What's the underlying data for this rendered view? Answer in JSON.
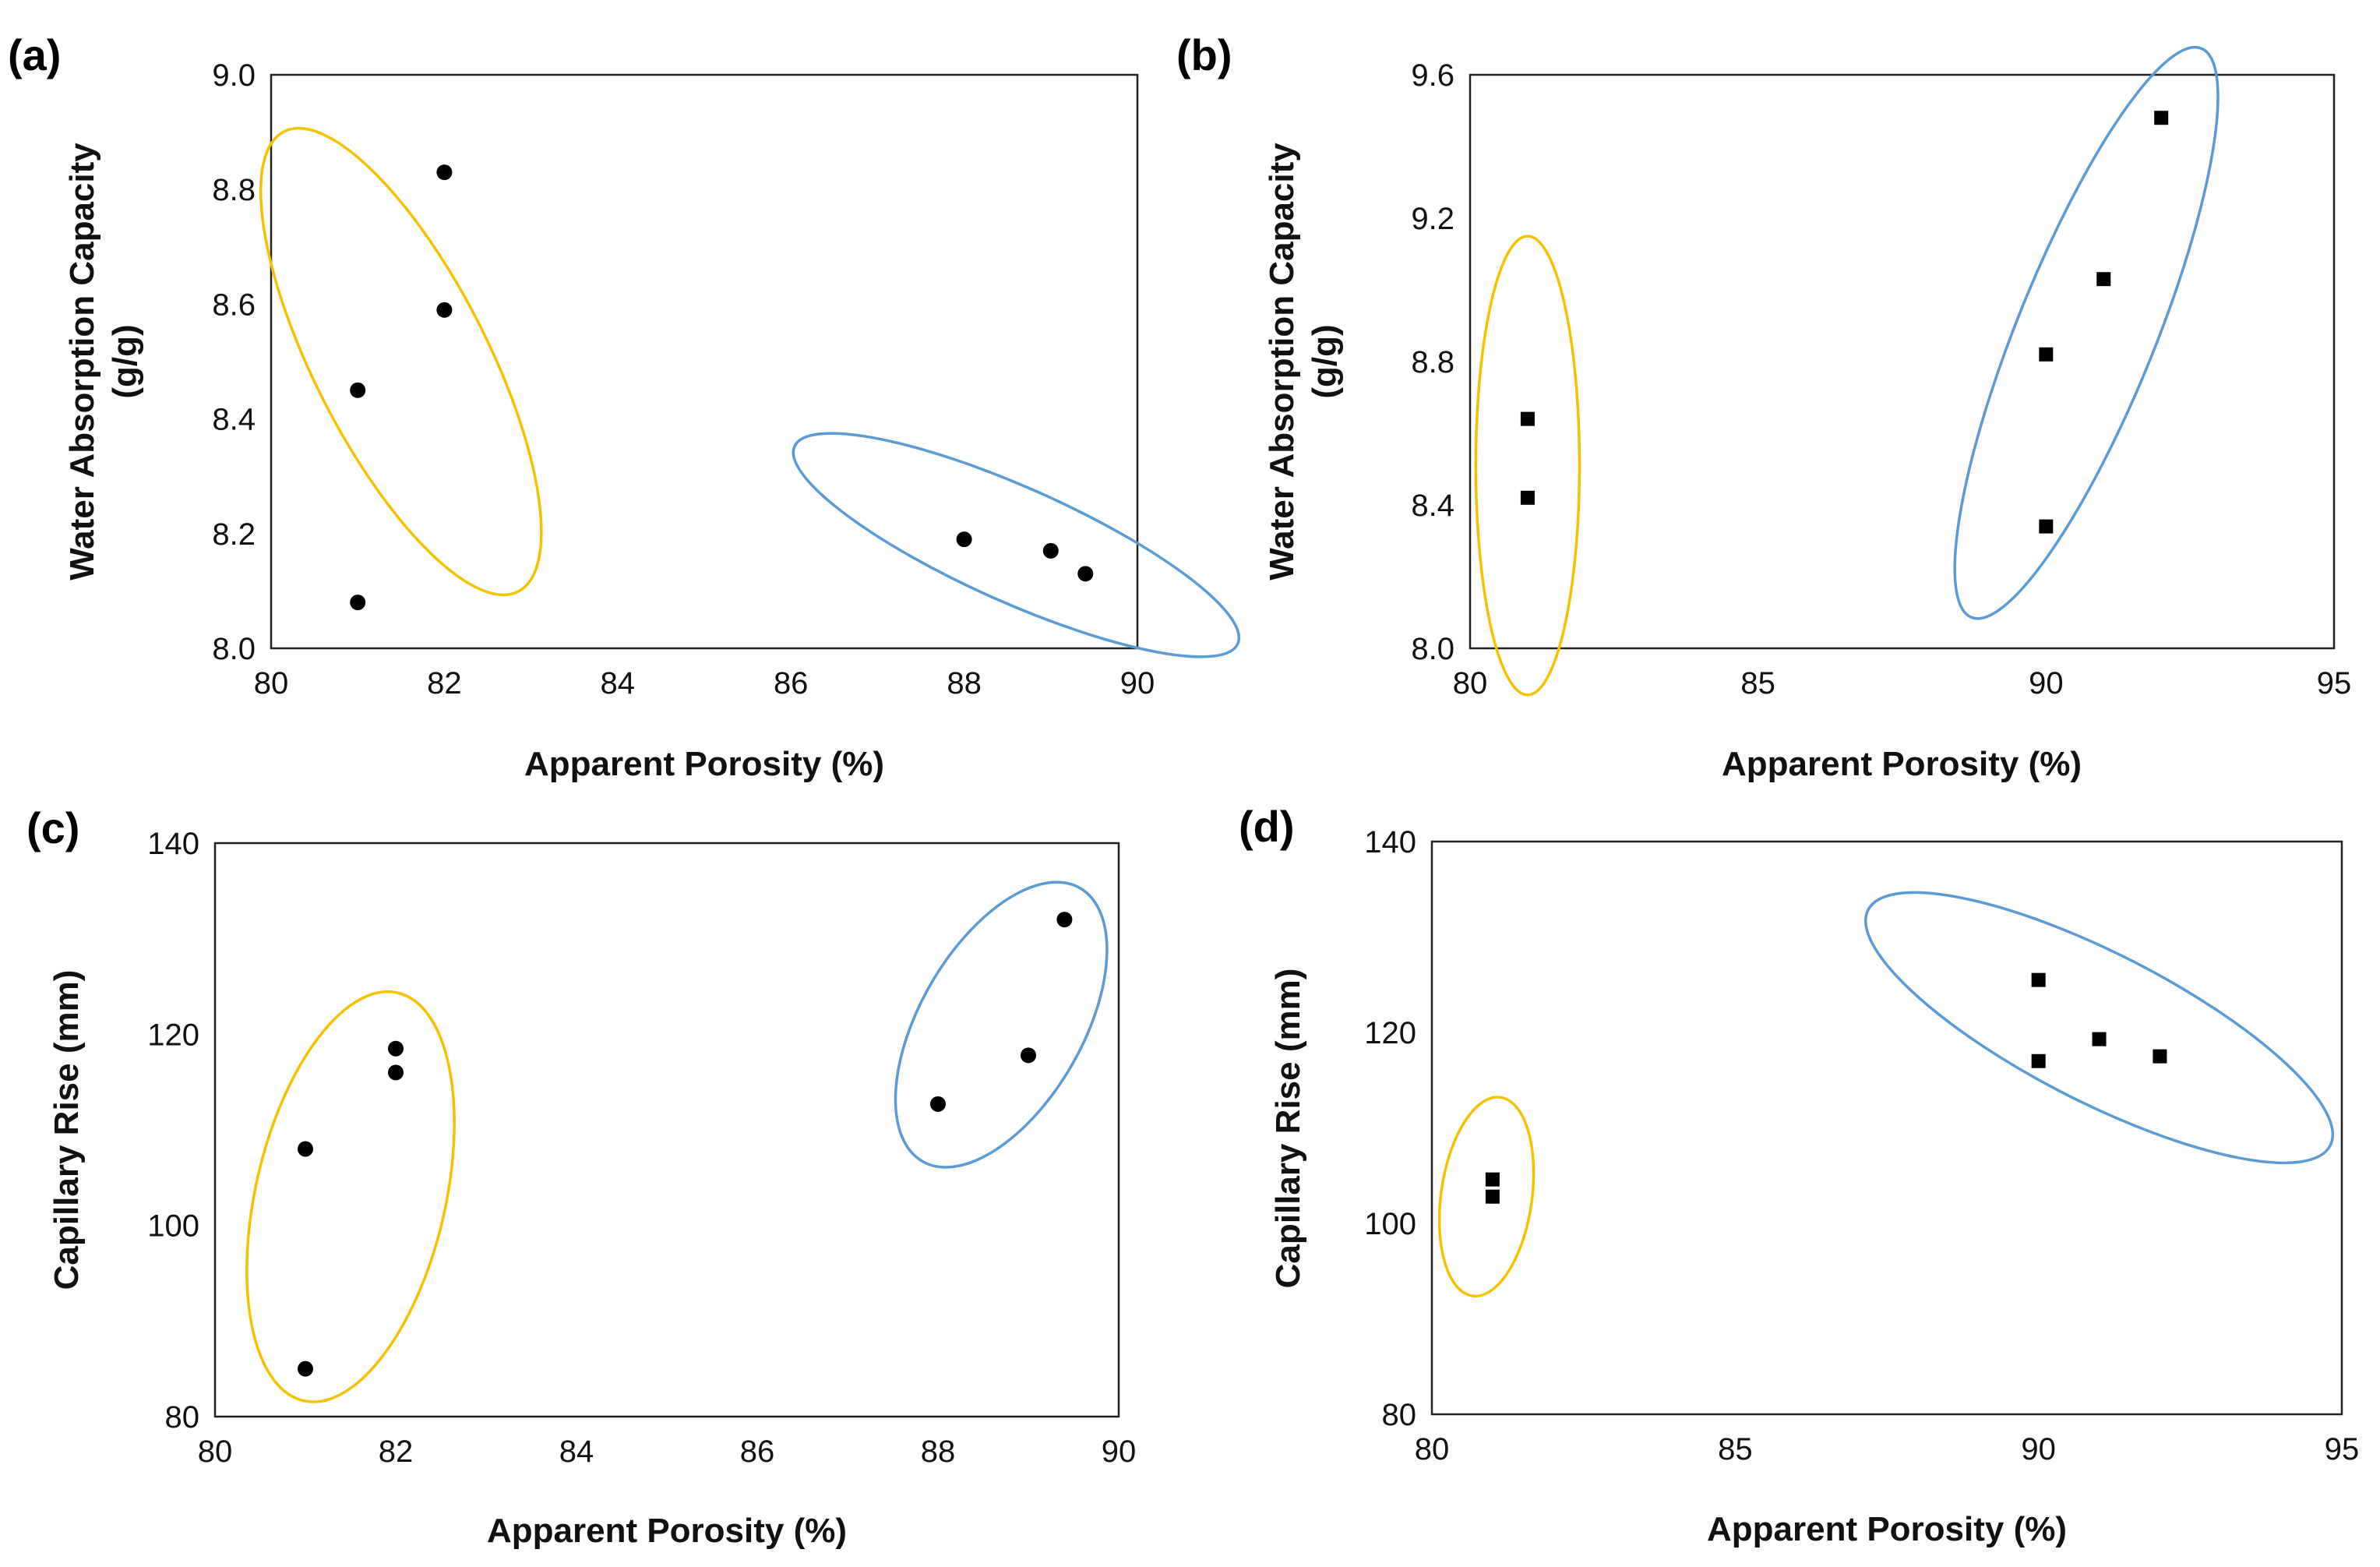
{
  "chart_data": [
    {
      "id": "a",
      "type": "scatter",
      "panel_label": "(a)",
      "marker": "circle",
      "xlabel": "Apparent Porosity (%)",
      "ylabel": "Water Absorption Capacity (g/g)",
      "ylabel_lines": [
        "Water Absorption Capacity",
        "(g/g)"
      ],
      "xlim": [
        80,
        90
      ],
      "ylim": [
        8.0,
        9.0
      ],
      "xticks": [
        80,
        82,
        84,
        86,
        88,
        90
      ],
      "yticks": [
        8.0,
        8.2,
        8.4,
        8.6,
        8.8,
        9.0
      ],
      "xtick_labels": [
        "80",
        "82",
        "84",
        "86",
        "88",
        "90"
      ],
      "ytick_labels": [
        "8.0",
        "8.2",
        "8.4",
        "8.6",
        "8.8",
        "9.0"
      ],
      "points": [
        {
          "x": 81,
          "y": 8.08
        },
        {
          "x": 81,
          "y": 8.45
        },
        {
          "x": 82,
          "y": 8.59
        },
        {
          "x": 82,
          "y": 8.83
        },
        {
          "x": 88,
          "y": 8.19
        },
        {
          "x": 89,
          "y": 8.17
        },
        {
          "x": 89.4,
          "y": 8.13
        }
      ],
      "clusters": [
        {
          "color": "#F5C200",
          "cx": 81.5,
          "cy": 8.5,
          "rx_pct": 0.2,
          "ry_pct": 0.9,
          "angle": -27
        },
        {
          "color": "#5B9BD5",
          "cx": 88.6,
          "cy": 8.18,
          "rx_pct": 0.56,
          "ry_pct": 0.2,
          "angle": 24
        }
      ]
    },
    {
      "id": "b",
      "type": "scatter",
      "panel_label": "(b)",
      "marker": "square",
      "xlabel": "Apparent Porosity (%)",
      "ylabel": "Water Absorption Capacity (g/g)",
      "ylabel_lines": [
        "Water Absorption Capacity",
        "(g/g)"
      ],
      "xlim": [
        80,
        95
      ],
      "ylim": [
        8.0,
        9.6
      ],
      "xticks": [
        80,
        85,
        90,
        95
      ],
      "yticks": [
        8.0,
        8.4,
        8.8,
        9.2,
        9.6
      ],
      "xtick_labels": [
        "80",
        "85",
        "90",
        "95"
      ],
      "ytick_labels": [
        "8.0",
        "8.4",
        "8.8",
        "9.2",
        "9.6"
      ],
      "points": [
        {
          "x": 81,
          "y": 8.42
        },
        {
          "x": 81,
          "y": 8.64
        },
        {
          "x": 90,
          "y": 8.34
        },
        {
          "x": 90,
          "y": 8.82
        },
        {
          "x": 91,
          "y": 9.03
        },
        {
          "x": 92,
          "y": 9.48
        }
      ],
      "clusters": [
        {
          "color": "#F5C200",
          "cx": 81.0,
          "cy": 8.51,
          "rx_pct": 0.12,
          "ry_pct": 0.8,
          "angle": 0
        },
        {
          "color": "#5B9BD5",
          "cx": 90.7,
          "cy": 8.88,
          "rx_pct": 0.16,
          "ry_pct": 1.07,
          "angle": 22
        }
      ]
    },
    {
      "id": "c",
      "type": "scatter",
      "panel_label": "(c)",
      "marker": "circle",
      "xlabel": "Apparent Porosity (%)",
      "ylabel": "Capillary Rise (mm)",
      "ylabel_lines": [
        "Capillary Rise (mm)"
      ],
      "xlim": [
        80,
        90
      ],
      "ylim": [
        80,
        140
      ],
      "xticks": [
        80,
        82,
        84,
        86,
        88,
        90
      ],
      "yticks": [
        80,
        100,
        120,
        140
      ],
      "xtick_labels": [
        "80",
        "82",
        "84",
        "86",
        "88",
        "90"
      ],
      "ytick_labels": [
        "80",
        "100",
        "120",
        "140"
      ],
      "points": [
        {
          "x": 81,
          "y": 85
        },
        {
          "x": 81,
          "y": 108
        },
        {
          "x": 82,
          "y": 116
        },
        {
          "x": 82,
          "y": 118.5
        },
        {
          "x": 88,
          "y": 112.7
        },
        {
          "x": 89,
          "y": 117.8
        },
        {
          "x": 89.4,
          "y": 132
        }
      ],
      "clusters": [
        {
          "color": "#F5C200",
          "cx": 81.5,
          "cy": 103,
          "rx_pct": 0.21,
          "ry_pct": 0.73,
          "angle": 13
        },
        {
          "color": "#5B9BD5",
          "cx": 88.7,
          "cy": 121,
          "rx_pct": 0.18,
          "ry_pct": 0.55,
          "angle": 30
        }
      ]
    },
    {
      "id": "d",
      "type": "scatter",
      "panel_label": "(d)",
      "marker": "square",
      "xlabel": "Apparent Porosity (%)",
      "ylabel": "Capillary Rise (mm)",
      "ylabel_lines": [
        "Capillary Rise (mm)"
      ],
      "xlim": [
        80,
        95
      ],
      "ylim": [
        80,
        140
      ],
      "xticks": [
        80,
        85,
        90,
        95
      ],
      "yticks": [
        80,
        100,
        120,
        140
      ],
      "xtick_labels": [
        "80",
        "85",
        "90",
        "95"
      ],
      "ytick_labels": [
        "80",
        "100",
        "120",
        "140"
      ],
      "points": [
        {
          "x": 81,
          "y": 102.8
        },
        {
          "x": 81,
          "y": 104.6
        },
        {
          "x": 90,
          "y": 125.5
        },
        {
          "x": 90,
          "y": 117
        },
        {
          "x": 91,
          "y": 119.3
        },
        {
          "x": 92,
          "y": 117.5
        }
      ],
      "clusters": [
        {
          "color": "#F5C200",
          "cx": 80.9,
          "cy": 102.8,
          "rx_pct": 0.1,
          "ry_pct": 0.35,
          "angle": 8
        },
        {
          "color": "#5B9BD5",
          "cx": 91.0,
          "cy": 120.5,
          "rx_pct": 0.57,
          "ry_pct": 0.26,
          "angle": 27
        }
      ]
    }
  ]
}
